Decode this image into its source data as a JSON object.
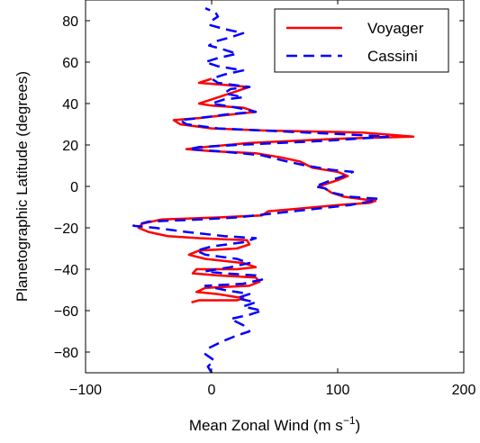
{
  "chart_data": {
    "type": "line",
    "xlabel": "Mean Zonal Wind (m s",
    "xlabel_sup": "−1",
    "xlabel_close": ")",
    "ylabel": "Planetographic Latitude (degrees)",
    "xlim": [
      -100,
      200
    ],
    "ylim": [
      -90,
      90
    ],
    "xticks": [
      {
        "value": -100,
        "label": "−100"
      },
      {
        "value": 0,
        "label": "0"
      },
      {
        "value": 100,
        "label": "100"
      },
      {
        "value": 200,
        "label": "200"
      }
    ],
    "yticks": [
      {
        "value": -80,
        "label": "−80"
      },
      {
        "value": -60,
        "label": "−60"
      },
      {
        "value": -40,
        "label": "−40"
      },
      {
        "value": -20,
        "label": "−20"
      },
      {
        "value": 0,
        "label": "0"
      },
      {
        "value": 20,
        "label": "20"
      },
      {
        "value": 40,
        "label": "40"
      },
      {
        "value": 60,
        "label": "60"
      },
      {
        "value": 80,
        "label": "80"
      }
    ],
    "grid": false,
    "legend_position": "top-right",
    "series": [
      {
        "name": "Voyager",
        "color": "#ff0000",
        "style": "solid",
        "points": [
          [
            -16,
            -56
          ],
          [
            -10,
            -55
          ],
          [
            20,
            -55
          ],
          [
            25,
            -54
          ],
          [
            5,
            -52
          ],
          [
            -12,
            -51
          ],
          [
            -5,
            -49
          ],
          [
            30,
            -48
          ],
          [
            38,
            -46
          ],
          [
            35,
            -44
          ],
          [
            5,
            -43
          ],
          [
            -15,
            -42
          ],
          [
            -12,
            -40
          ],
          [
            20,
            -40
          ],
          [
            35,
            -39
          ],
          [
            25,
            -37
          ],
          [
            -5,
            -35
          ],
          [
            -18,
            -33
          ],
          [
            -10,
            -31
          ],
          [
            20,
            -30
          ],
          [
            30,
            -28
          ],
          [
            28,
            -26
          ],
          [
            -10,
            -25
          ],
          [
            -35,
            -24
          ],
          [
            -50,
            -22
          ],
          [
            -58,
            -20
          ],
          [
            -55,
            -18
          ],
          [
            -40,
            -16
          ],
          [
            5,
            -15
          ],
          [
            40,
            -14
          ],
          [
            45,
            -12
          ],
          [
            65,
            -11
          ],
          [
            100,
            -9
          ],
          [
            125,
            -8
          ],
          [
            130,
            -7
          ],
          [
            105,
            -5
          ],
          [
            95,
            -3
          ],
          [
            90,
            -1
          ],
          [
            85,
            0
          ],
          [
            100,
            3
          ],
          [
            108,
            5
          ],
          [
            100,
            7
          ],
          [
            80,
            9
          ],
          [
            70,
            12
          ],
          [
            55,
            14
          ],
          [
            35,
            16
          ],
          [
            0,
            17
          ],
          [
            -20,
            18
          ],
          [
            -5,
            19
          ],
          [
            30,
            21
          ],
          [
            100,
            23
          ],
          [
            160,
            24
          ],
          [
            120,
            26
          ],
          [
            40,
            27
          ],
          [
            0,
            28
          ],
          [
            -25,
            30
          ],
          [
            -30,
            32
          ],
          [
            -10,
            33
          ],
          [
            20,
            35
          ],
          [
            35,
            36
          ],
          [
            25,
            38
          ],
          [
            0,
            39
          ],
          [
            -10,
            40
          ],
          [
            0,
            42
          ],
          [
            10,
            44
          ],
          [
            20,
            46
          ],
          [
            30,
            48
          ],
          [
            10,
            49
          ],
          [
            -10,
            50
          ],
          [
            0,
            52
          ]
        ]
      },
      {
        "name": "Cassini",
        "color": "#0000ff",
        "style": "dashed",
        "points": [
          [
            0,
            -90
          ],
          [
            -3,
            -87
          ],
          [
            2,
            -84
          ],
          [
            -5,
            -81
          ],
          [
            -2,
            -78
          ],
          [
            8,
            -75
          ],
          [
            20,
            -72
          ],
          [
            30,
            -70
          ],
          [
            25,
            -67
          ],
          [
            15,
            -64
          ],
          [
            30,
            -62
          ],
          [
            40,
            -60
          ],
          [
            25,
            -58
          ],
          [
            35,
            -56
          ],
          [
            20,
            -54
          ],
          [
            30,
            -52
          ],
          [
            10,
            -50
          ],
          [
            -5,
            -48
          ],
          [
            25,
            -47
          ],
          [
            40,
            -45
          ],
          [
            35,
            -43
          ],
          [
            10,
            -42
          ],
          [
            -5,
            -41
          ],
          [
            15,
            -39
          ],
          [
            30,
            -37
          ],
          [
            20,
            -35
          ],
          [
            -5,
            -33
          ],
          [
            -12,
            -31
          ],
          [
            0,
            -29
          ],
          [
            25,
            -27
          ],
          [
            35,
            -25
          ],
          [
            10,
            -24
          ],
          [
            -20,
            -22
          ],
          [
            -45,
            -20
          ],
          [
            -62,
            -19
          ],
          [
            -50,
            -17
          ],
          [
            -10,
            -16
          ],
          [
            20,
            -15
          ],
          [
            50,
            -13
          ],
          [
            80,
            -11
          ],
          [
            110,
            -9
          ],
          [
            128,
            -7
          ],
          [
            132,
            -6
          ],
          [
            110,
            -5
          ],
          [
            95,
            -3
          ],
          [
            90,
            -1
          ],
          [
            82,
            0
          ],
          [
            95,
            3
          ],
          [
            105,
            5
          ],
          [
            112,
            7
          ],
          [
            95,
            8
          ],
          [
            75,
            10
          ],
          [
            60,
            12
          ],
          [
            40,
            15
          ],
          [
            5,
            17
          ],
          [
            -18,
            18
          ],
          [
            -10,
            19
          ],
          [
            20,
            20
          ],
          [
            90,
            22
          ],
          [
            140,
            24
          ],
          [
            110,
            25
          ],
          [
            40,
            27
          ],
          [
            5,
            28
          ],
          [
            -20,
            30
          ],
          [
            -25,
            32
          ],
          [
            -10,
            33
          ],
          [
            15,
            35
          ],
          [
            35,
            36
          ],
          [
            20,
            38
          ],
          [
            0,
            40
          ],
          [
            10,
            42
          ],
          [
            25,
            43
          ],
          [
            10,
            45
          ],
          [
            15,
            47
          ],
          [
            30,
            48
          ],
          [
            5,
            50
          ],
          [
            0,
            52
          ],
          [
            10,
            54
          ],
          [
            25,
            56
          ],
          [
            5,
            58
          ],
          [
            -5,
            60
          ],
          [
            5,
            62
          ],
          [
            20,
            64
          ],
          [
            10,
            66
          ],
          [
            -2,
            68
          ],
          [
            3,
            70
          ],
          [
            15,
            72
          ],
          [
            25,
            74
          ],
          [
            10,
            76
          ],
          [
            -2,
            78
          ],
          [
            0,
            80
          ],
          [
            5,
            82
          ],
          [
            3,
            84
          ],
          [
            -5,
            86
          ]
        ]
      }
    ]
  }
}
